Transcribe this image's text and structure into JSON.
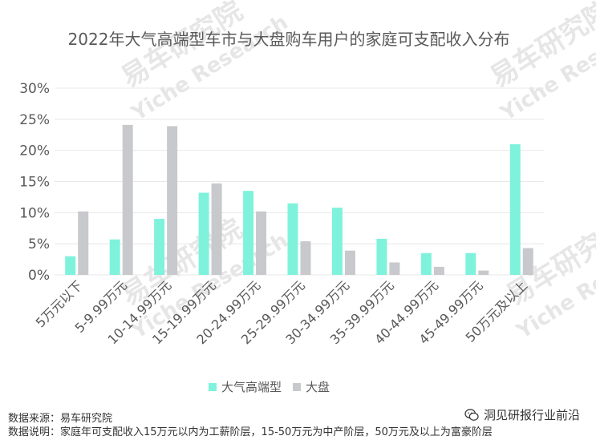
{
  "title": "2022年大气高端型车市与大盘购车用户的家庭可支配收入分布",
  "watermarks": {
    "brand_cn": "易车研究院",
    "brand_en": "Yiche Research"
  },
  "chart_data": {
    "type": "bar",
    "categories": [
      "5万元以下",
      "5-9.99万元",
      "10-14.99万元",
      "15-19.99万元",
      "20-24.99万元",
      "25-29.99万元",
      "30-34.99万元",
      "35-39.99万元",
      "40-44.99万元",
      "45-49.99万元",
      "50万元及以上"
    ],
    "series": [
      {
        "name": "大气高端型",
        "color": "#7ff2dc",
        "values": [
          3.0,
          5.7,
          9.0,
          13.2,
          13.5,
          11.5,
          10.8,
          5.8,
          3.5,
          3.5,
          21.0
        ]
      },
      {
        "name": "大盘",
        "color": "#c8c9cc",
        "values": [
          10.2,
          24.1,
          23.9,
          14.7,
          10.2,
          5.4,
          3.9,
          2.0,
          1.3,
          0.7,
          4.3
        ]
      }
    ],
    "yticks": [
      "0%",
      "5%",
      "10%",
      "15%",
      "20%",
      "25%",
      "30%"
    ],
    "ylim": [
      0,
      30
    ],
    "grid": true,
    "legend_position": "bottom"
  },
  "footer": {
    "source": "数据来源：易车研究院",
    "note": "数据说明：家庭年可支配收入15万元以内为工薪阶层，15-50万元为中产阶层，50万元及以上为富豪阶层"
  },
  "brand_label": "洞见研报行业前沿"
}
